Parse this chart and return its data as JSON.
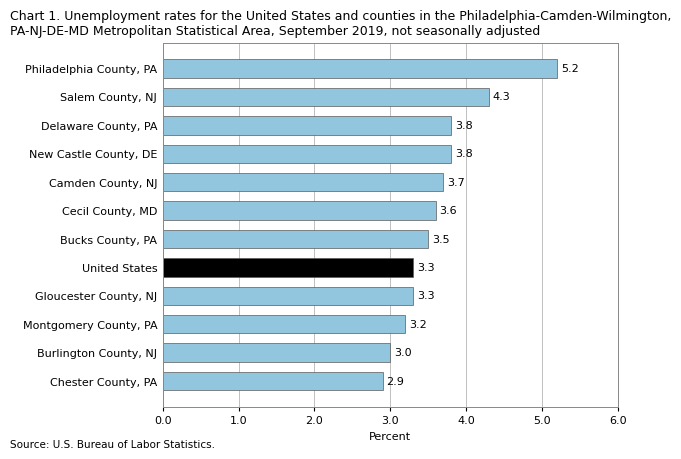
{
  "title_line1": "Chart 1. Unemployment rates for the United States and counties in the Philadelphia-Camden-Wilmington,",
  "title_line2": "PA-NJ-DE-MD Metropolitan Statistical Area, September 2019, not seasonally adjusted",
  "categories": [
    "Chester County, PA",
    "Burlington County, NJ",
    "Montgomery County, PA",
    "Gloucester County, NJ",
    "United States",
    "Bucks County, PA",
    "Cecil County, MD",
    "Camden County, NJ",
    "New Castle County, DE",
    "Delaware County, PA",
    "Salem County, NJ",
    "Philadelphia County, PA"
  ],
  "values": [
    2.9,
    3.0,
    3.2,
    3.3,
    3.3,
    3.5,
    3.6,
    3.7,
    3.8,
    3.8,
    4.3,
    5.2
  ],
  "bar_colors": [
    "#92c5de",
    "#92c5de",
    "#92c5de",
    "#92c5de",
    "#000000",
    "#92c5de",
    "#92c5de",
    "#92c5de",
    "#92c5de",
    "#92c5de",
    "#92c5de",
    "#92c5de"
  ],
  "xlabel": "Percent",
  "xlim": [
    0,
    6.0
  ],
  "xticks": [
    0.0,
    1.0,
    2.0,
    3.0,
    4.0,
    5.0,
    6.0
  ],
  "xtick_labels": [
    "0.0",
    "1.0",
    "2.0",
    "3.0",
    "4.0",
    "5.0",
    "6.0"
  ],
  "source": "Source: U.S. Bureau of Labor Statistics.",
  "title_fontsize": 9.0,
  "label_fontsize": 8.0,
  "tick_fontsize": 8.0,
  "source_fontsize": 7.5,
  "value_label_color": "#000000",
  "bar_edge_color": "#5a5a5a",
  "bar_edge_width": 0.5,
  "grid_color": "#c0c0c0",
  "background_color": "#ffffff",
  "bar_height": 0.65
}
